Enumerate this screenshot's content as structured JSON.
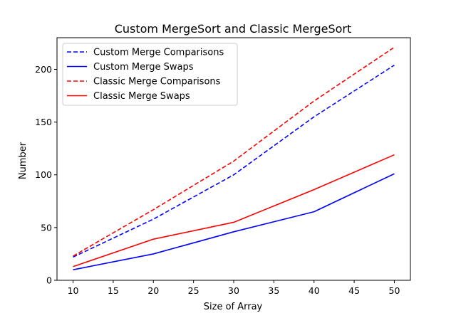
{
  "chart_data": {
    "type": "line",
    "title": "Custom MergeSort and Classic MergeSort",
    "xlabel": "Size of Array",
    "ylabel": "Number",
    "xlim": [
      8,
      52
    ],
    "ylim": [
      0,
      230
    ],
    "x": [
      10,
      20,
      30,
      40,
      50
    ],
    "xticks": [
      10,
      15,
      20,
      25,
      30,
      35,
      40,
      45,
      50
    ],
    "yticks": [
      0,
      50,
      100,
      150,
      200
    ],
    "grid": false,
    "legend_position": "top-left",
    "series": [
      {
        "name": "Custom Merge Comparisons",
        "values": [
          22,
          58,
          100,
          155,
          204
        ],
        "color": "#0000ff",
        "style": "dashed"
      },
      {
        "name": "Custom Merge Swaps",
        "values": [
          10,
          25,
          46,
          65,
          101
        ],
        "color": "#0000ff",
        "style": "solid"
      },
      {
        "name": "Classic Merge Comparisons",
        "values": [
          23,
          67,
          113,
          170,
          221
        ],
        "color": "#ff0000",
        "style": "dashed"
      },
      {
        "name": "Classic Merge Swaps",
        "values": [
          13,
          39,
          55,
          86,
          119
        ],
        "color": "#ff0000",
        "style": "solid"
      }
    ]
  }
}
